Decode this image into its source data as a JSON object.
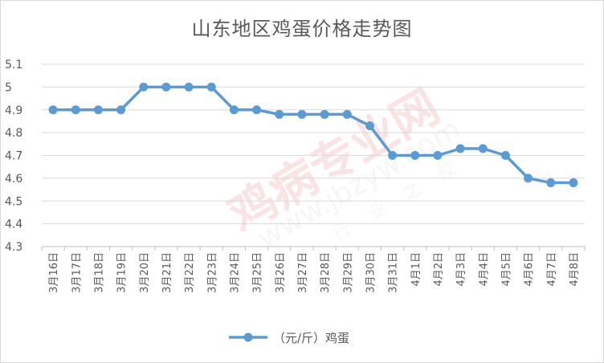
{
  "chart_data": {
    "type": "line",
    "title": "山东地区鸡蛋价格走势图",
    "categories": [
      "3月16日",
      "3月17日",
      "3月18日",
      "3月19日",
      "3月20日",
      "3月21日",
      "3月22日",
      "3月23日",
      "3月24日",
      "3月25日",
      "3月26日",
      "3月27日",
      "3月28日",
      "3月29日",
      "3月30日",
      "3月31日",
      "4月1日",
      "4月2日",
      "4月3日",
      "4月4日",
      "4月5日",
      "4月6日",
      "4月7日",
      "4月8日"
    ],
    "series": [
      {
        "name": "（元/斤）鸡蛋",
        "color": "#5b9bd5",
        "values": [
          4.9,
          4.9,
          4.9,
          4.9,
          5.0,
          5.0,
          5.0,
          5.0,
          4.9,
          4.9,
          4.88,
          4.88,
          4.88,
          4.88,
          4.83,
          4.7,
          4.7,
          4.7,
          4.73,
          4.73,
          4.7,
          4.6,
          4.58,
          4.58
        ]
      }
    ],
    "ylim": [
      4.3,
      5.1
    ],
    "yticks": [
      "4.3",
      "4.4",
      "4.5",
      "4.6",
      "4.7",
      "4.8",
      "4.9",
      "5",
      "5.1"
    ],
    "grid": true,
    "legend": "bottom",
    "xlabel": "",
    "ylabel": ""
  },
  "watermark": {
    "brand": "鸡病专业网",
    "url": "www.jbzyw.com",
    "slogan": "行业之佼"
  }
}
